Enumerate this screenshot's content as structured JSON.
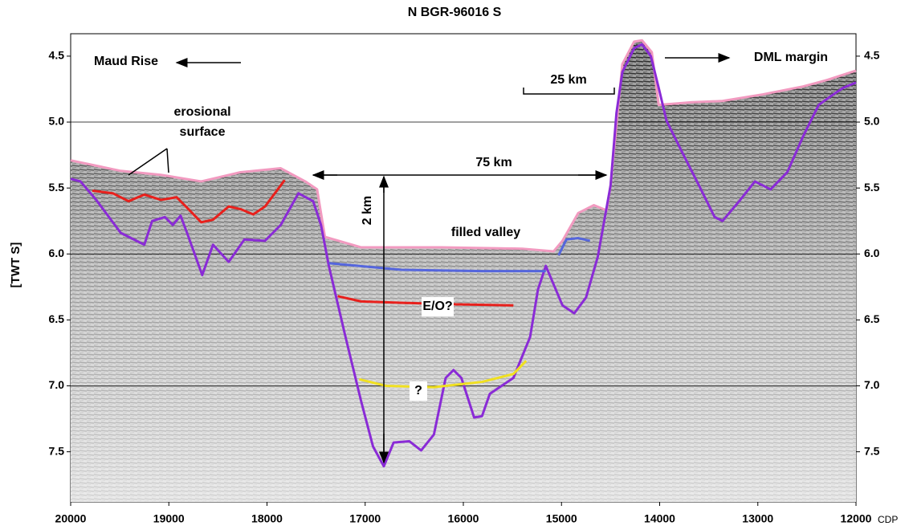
{
  "chart_data": {
    "type": "line",
    "title": "N BGR-96016 S",
    "y_label": "[TWT S]",
    "x_label": "CDP",
    "xlim": [
      20000,
      12000
    ],
    "ylim": [
      7.88,
      4.33
    ],
    "xticks": [
      20000,
      19000,
      18000,
      17000,
      16000,
      15000,
      14000,
      13000,
      12000
    ],
    "yticks": [
      4.5,
      {
        "value": 5,
        "label": "5.0"
      },
      5.5,
      {
        "value": 6,
        "label": "6.0"
      },
      6.5,
      {
        "value": 7,
        "label": "7.0"
      },
      7.5
    ],
    "grid": true,
    "annotations": [
      "Maud Rise",
      "DML margin",
      "erosional",
      "surface",
      "25 km",
      "75 km",
      "2 km",
      "filled valley",
      "E/O?",
      "?"
    ],
    "series": [
      {
        "color": "#f29ac0",
        "x": [
          20000,
          19490,
          19080,
          18670,
          18270,
          17860,
          17610,
          17490,
          17410,
          17040,
          16220,
          15400,
          15080,
          14990,
          14830,
          14670,
          14540,
          14500,
          14380,
          14260,
          14180,
          14080,
          14010,
          13680,
          13360,
          12950,
          12540,
          12290,
          12000
        ],
        "values": [
          5.29,
          5.37,
          5.4,
          5.45,
          5.38,
          5.35,
          5.45,
          5.51,
          5.87,
          5.95,
          5.95,
          5.96,
          5.98,
          5.9,
          5.69,
          5.63,
          5.67,
          5.48,
          4.56,
          4.39,
          4.38,
          4.47,
          4.87,
          4.85,
          4.84,
          4.79,
          4.73,
          4.68,
          4.61
        ]
      },
      {
        "color": "#8a2bd6",
        "x": [
          20000,
          19900,
          19740,
          19490,
          19250,
          19170,
          19040,
          18960,
          18880,
          18800,
          18660,
          18550,
          18390,
          18230,
          18020,
          17860,
          17680,
          17530,
          17450,
          17370,
          17200,
          17040,
          16920,
          16810,
          16710,
          16550,
          16430,
          16300,
          16180,
          16100,
          16020,
          15890,
          15810,
          15730,
          15610,
          15490,
          15320,
          15240,
          15160,
          14990,
          14870,
          14750,
          14630,
          14500,
          14440,
          14380,
          14260,
          14180,
          14090,
          14010,
          13930,
          13770,
          13600,
          13440,
          13360,
          13190,
          13030,
          12870,
          12700,
          12540,
          12380,
          12250,
          12130,
          12000
        ],
        "values": [
          5.43,
          5.45,
          5.59,
          5.84,
          5.93,
          5.75,
          5.72,
          5.78,
          5.71,
          5.87,
          6.16,
          5.93,
          6.06,
          5.89,
          5.9,
          5.78,
          5.54,
          5.6,
          5.78,
          6.09,
          6.63,
          7.12,
          7.46,
          7.61,
          7.43,
          7.42,
          7.49,
          7.37,
          6.94,
          6.88,
          6.94,
          7.24,
          7.23,
          7.06,
          7.0,
          6.94,
          6.63,
          6.27,
          6.09,
          6.39,
          6.45,
          6.33,
          6.02,
          5.48,
          4.93,
          4.62,
          4.44,
          4.41,
          4.5,
          4.74,
          4.99,
          5.23,
          5.48,
          5.72,
          5.75,
          5.6,
          5.45,
          5.51,
          5.38,
          5.11,
          4.87,
          4.8,
          4.74,
          4.7
        ]
      },
      {
        "color": "#e8201c",
        "x": [
          19780,
          19570,
          19410,
          19250,
          19080,
          18920,
          18800,
          18670,
          18550,
          18390,
          18270,
          18140,
          18020,
          17900,
          17820
        ],
        "values": [
          5.52,
          5.54,
          5.6,
          5.55,
          5.59,
          5.57,
          5.66,
          5.76,
          5.74,
          5.64,
          5.66,
          5.7,
          5.64,
          5.52,
          5.44
        ]
      },
      {
        "color": "#e8201c",
        "x": [
          17280,
          17040,
          16220,
          15490
        ],
        "values": [
          6.32,
          6.36,
          6.38,
          6.39
        ]
      },
      {
        "color": "#5566dd",
        "x": [
          17370,
          16630,
          15810,
          15160
        ],
        "values": [
          6.07,
          6.12,
          6.13,
          6.13
        ]
      },
      {
        "color": "#5566dd",
        "x": [
          15030,
          14950,
          14830,
          14710
        ],
        "values": [
          6.01,
          5.89,
          5.88,
          5.9
        ]
      },
      {
        "color": "#f0e020",
        "x": [
          17060,
          16790,
          16300,
          15810,
          15490,
          15360
        ],
        "values": [
          6.95,
          7.0,
          7.01,
          6.97,
          6.91,
          6.81
        ]
      }
    ]
  }
}
